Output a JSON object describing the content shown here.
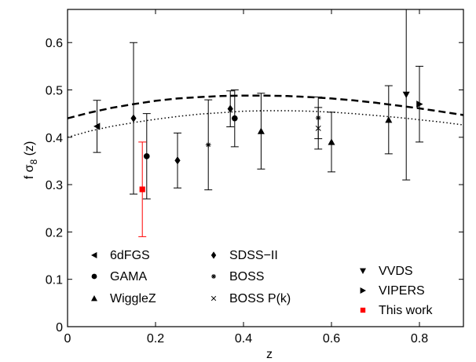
{
  "chart_data": {
    "type": "scatter",
    "xlabel": "z",
    "ylabel_parts": [
      "f σ",
      "8",
      " (z)"
    ],
    "xlim": [
      0,
      0.9
    ],
    "ylim": [
      0,
      0.67
    ],
    "x_ticks": [
      0,
      0.2,
      0.4,
      0.6,
      0.8
    ],
    "x_tick_labels": [
      "0",
      "0.2",
      "0.4",
      "0.6",
      "0.8"
    ],
    "y_ticks": [
      0,
      0.1,
      0.2,
      0.3,
      0.4,
      0.5,
      0.6
    ],
    "y_tick_labels": [
      "0",
      "0.1",
      "0.2",
      "0.3",
      "0.4",
      "0.5",
      "0.6"
    ],
    "grid": false,
    "legend_position": "bottom",
    "series": [
      {
        "name": "6dFGS",
        "marker": "triangle-left",
        "color": "#000000",
        "points": [
          {
            "x": 0.067,
            "y": 0.423,
            "err": 0.055
          }
        ]
      },
      {
        "name": "GAMA",
        "marker": "circle",
        "color": "#000000",
        "points": [
          {
            "x": 0.18,
            "y": 0.36,
            "err": 0.09
          },
          {
            "x": 0.38,
            "y": 0.44,
            "err": 0.06
          }
        ]
      },
      {
        "name": "WiggleZ",
        "marker": "triangle-up",
        "color": "#000000",
        "points": [
          {
            "x": 0.44,
            "y": 0.413,
            "err": 0.08
          },
          {
            "x": 0.6,
            "y": 0.39,
            "err": 0.063
          },
          {
            "x": 0.73,
            "y": 0.437,
            "err": 0.072
          }
        ]
      },
      {
        "name": "SDSS−II",
        "marker": "diamond",
        "color": "#000000",
        "points": [
          {
            "x": 0.25,
            "y": 0.351,
            "err": 0.058
          },
          {
            "x": 0.37,
            "y": 0.46,
            "err": 0.038
          }
        ]
      },
      {
        "name": "BOSS",
        "marker": "asterisk",
        "color": "#000000",
        "points": [
          {
            "x": 0.32,
            "y": 0.384,
            "err": 0.095
          },
          {
            "x": 0.57,
            "y": 0.441,
            "err": 0.044
          }
        ]
      },
      {
        "name": "BOSS P(k)",
        "marker": "cross",
        "color": "#000000",
        "points": [
          {
            "x": 0.57,
            "y": 0.419,
            "err": 0.044
          }
        ]
      },
      {
        "name": "VVDS",
        "marker": "triangle-down",
        "color": "#000000",
        "points": [
          {
            "x": 0.77,
            "y": 0.49,
            "err": 0.18
          }
        ]
      },
      {
        "name": "VIPERS",
        "marker": "triangle-right",
        "color": "#000000",
        "points": [
          {
            "x": 0.8,
            "y": 0.47,
            "err": 0.08
          }
        ]
      },
      {
        "name": "This work",
        "marker": "square",
        "color": "#ff0000",
        "points": [
          {
            "x": 0.17,
            "y": 0.29,
            "err": 0.1
          }
        ]
      },
      {
        "name": "",
        "marker": "diamond",
        "color": "#000000",
        "points": [
          {
            "x": 0.15,
            "y": 0.44,
            "err": 0.16
          }
        ]
      }
    ],
    "curves": [
      {
        "style": "dashed",
        "color": "#000000",
        "x": [
          0,
          0.05,
          0.1,
          0.15,
          0.2,
          0.25,
          0.3,
          0.35,
          0.4,
          0.45,
          0.5,
          0.55,
          0.6,
          0.65,
          0.7,
          0.75,
          0.8,
          0.85,
          0.9
        ],
        "y": [
          0.44,
          0.452,
          0.462,
          0.47,
          0.477,
          0.482,
          0.485,
          0.487,
          0.488,
          0.488,
          0.487,
          0.485,
          0.482,
          0.478,
          0.473,
          0.467,
          0.461,
          0.454,
          0.447
        ]
      },
      {
        "style": "dotted",
        "color": "#000000",
        "x": [
          0,
          0.05,
          0.1,
          0.15,
          0.2,
          0.25,
          0.3,
          0.35,
          0.4,
          0.45,
          0.5,
          0.55,
          0.6,
          0.65,
          0.7,
          0.75,
          0.8,
          0.85,
          0.9
        ],
        "y": [
          0.4,
          0.413,
          0.423,
          0.431,
          0.438,
          0.444,
          0.449,
          0.452,
          0.455,
          0.456,
          0.456,
          0.455,
          0.453,
          0.45,
          0.446,
          0.442,
          0.437,
          0.432,
          0.426
        ]
      }
    ],
    "legend_columns": [
      [
        "6dFGS",
        "GAMA",
        "WiggleZ"
      ],
      [
        "SDSS−II",
        "BOSS",
        "BOSS P(k)"
      ],
      [
        "VVDS",
        "VIPERS",
        "This work"
      ]
    ]
  }
}
